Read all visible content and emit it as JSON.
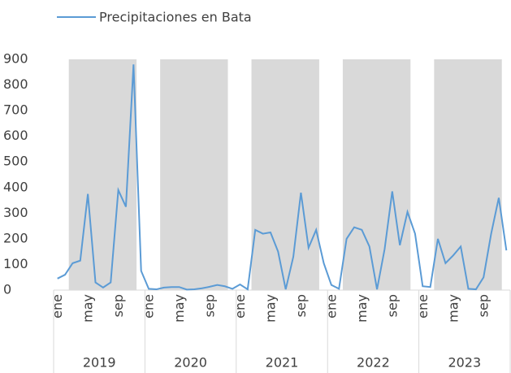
{
  "chart_data": {
    "type": "line",
    "categories": [
      "ene",
      null,
      null,
      null,
      "may",
      null,
      null,
      null,
      "sep",
      null,
      null,
      null,
      "ene",
      null,
      null,
      null,
      "may",
      null,
      null,
      null,
      "sep",
      null,
      null,
      null,
      "ene",
      null,
      null,
      null,
      "may",
      null,
      null,
      null,
      "sep",
      null,
      null,
      null,
      "ene",
      null,
      null,
      null,
      "may",
      null,
      null,
      null,
      "sep",
      null,
      null,
      null,
      "ene",
      null,
      null,
      null,
      "may",
      null,
      null,
      null,
      "sep",
      null,
      null,
      null
    ],
    "year_labels": [
      "2019",
      "2020",
      "2021",
      "2022",
      "2023"
    ],
    "series": [
      {
        "name": "Precipitaciones en Bata",
        "color": "#5b9bd5",
        "values": [
          45,
          60,
          105,
          115,
          375,
          30,
          10,
          30,
          390,
          325,
          880,
          75,
          5,
          3,
          10,
          12,
          12,
          2,
          3,
          7,
          13,
          20,
          15,
          5,
          22,
          3,
          235,
          220,
          225,
          150,
          3,
          130,
          380,
          165,
          235,
          105,
          20,
          5,
          200,
          245,
          235,
          170,
          3,
          160,
          385,
          175,
          305,
          220,
          15,
          12,
          200,
          105,
          135,
          170,
          5,
          3,
          50,
          220,
          360,
          155
        ]
      }
    ],
    "ylim": [
      0,
      900
    ],
    "yticks": [
      0,
      100,
      200,
      300,
      400,
      500,
      600,
      700,
      800,
      900
    ],
    "legend": "top"
  }
}
